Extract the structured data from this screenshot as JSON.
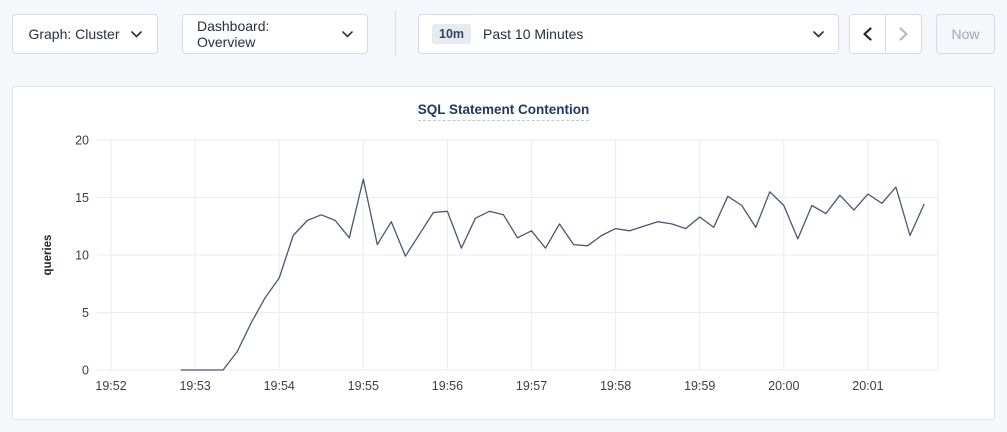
{
  "toolbar": {
    "graph_label": "Graph: Cluster",
    "dashboard_label": "Dashboard: Overview",
    "time_badge": "10m",
    "time_label": "Past 10 Minutes",
    "now_label": "Now"
  },
  "colors": {
    "line": "#475872",
    "title": "#1f3866",
    "grid": "#e9ebef",
    "tick_text": "#3a3f46",
    "enabled_arrow": "#1c2438",
    "disabled_arrow": "#b3bac7"
  },
  "chart_data": {
    "type": "line",
    "title": "SQL Statement Contention",
    "xlabel": "",
    "ylabel": "queries",
    "ylim": [
      0,
      20
    ],
    "yticks": [
      0,
      5,
      10,
      15,
      20
    ],
    "x_domain_seconds": [
      -10,
      590
    ],
    "xticks": [
      {
        "t": 0,
        "label": "19:52"
      },
      {
        "t": 60,
        "label": "19:53"
      },
      {
        "t": 120,
        "label": "19:54"
      },
      {
        "t": 180,
        "label": "19:55"
      },
      {
        "t": 240,
        "label": "19:56"
      },
      {
        "t": 300,
        "label": "19:57"
      },
      {
        "t": 360,
        "label": "19:58"
      },
      {
        "t": 420,
        "label": "19:59"
      },
      {
        "t": 480,
        "label": "20:00"
      },
      {
        "t": 540,
        "label": "20:01"
      }
    ],
    "grid": true,
    "legend": false,
    "series": [
      {
        "name": "SQL Statement Contention",
        "color": "#475872",
        "points": [
          [
            50,
            0
          ],
          [
            60,
            0
          ],
          [
            70,
            0
          ],
          [
            80,
            0
          ],
          [
            90,
            1.6
          ],
          [
            100,
            4.1
          ],
          [
            110,
            6.3
          ],
          [
            120,
            8.0
          ],
          [
            130,
            11.7
          ],
          [
            140,
            13.0
          ],
          [
            150,
            13.5
          ],
          [
            160,
            13.0
          ],
          [
            170,
            11.5
          ],
          [
            180,
            16.6
          ],
          [
            190,
            10.9
          ],
          [
            200,
            12.9
          ],
          [
            210,
            9.9
          ],
          [
            220,
            11.8
          ],
          [
            230,
            13.7
          ],
          [
            240,
            13.8
          ],
          [
            250,
            10.6
          ],
          [
            260,
            13.2
          ],
          [
            270,
            13.8
          ],
          [
            280,
            13.5
          ],
          [
            290,
            11.5
          ],
          [
            300,
            12.1
          ],
          [
            310,
            10.6
          ],
          [
            320,
            12.7
          ],
          [
            330,
            10.9
          ],
          [
            340,
            10.8
          ],
          [
            350,
            11.7
          ],
          [
            360,
            12.3
          ],
          [
            370,
            12.1
          ],
          [
            380,
            12.5
          ],
          [
            390,
            12.9
          ],
          [
            400,
            12.7
          ],
          [
            410,
            12.3
          ],
          [
            420,
            13.3
          ],
          [
            430,
            12.4
          ],
          [
            440,
            15.1
          ],
          [
            450,
            14.3
          ],
          [
            460,
            12.4
          ],
          [
            470,
            15.5
          ],
          [
            480,
            14.3
          ],
          [
            490,
            11.4
          ],
          [
            500,
            14.3
          ],
          [
            510,
            13.6
          ],
          [
            520,
            15.2
          ],
          [
            530,
            13.9
          ],
          [
            540,
            15.3
          ],
          [
            550,
            14.5
          ],
          [
            560,
            15.9
          ],
          [
            570,
            11.7
          ],
          [
            580,
            14.4
          ]
        ]
      }
    ]
  }
}
